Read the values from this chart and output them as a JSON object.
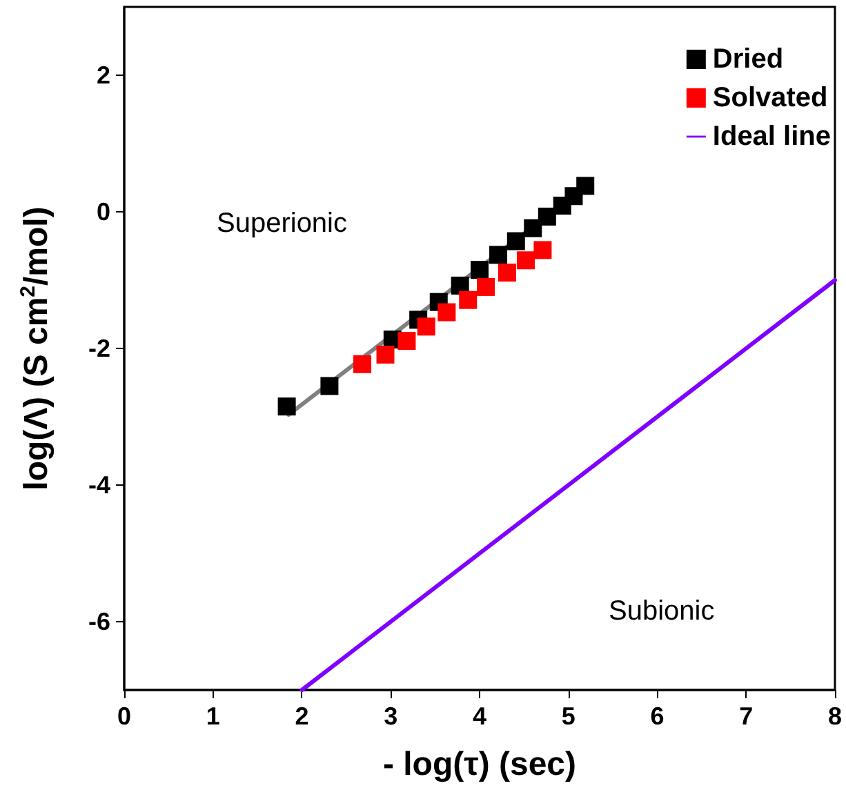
{
  "chart_data": {
    "type": "scatter",
    "xlabel": "- log(τ) (sec)",
    "ylabel": "log(Λ) (S cm$^{2}$/mol)",
    "xlim": [
      0,
      8
    ],
    "xticks": [
      0,
      1,
      2,
      3,
      4,
      5,
      6,
      7,
      8
    ],
    "ylim": [
      -7,
      3
    ],
    "yticks": [
      -6,
      -4,
      -2,
      0,
      2
    ],
    "series": [
      {
        "type": "line",
        "marker": "none",
        "color": "#808080",
        "x": [
          1.85,
          5.2
        ],
        "values": [
          -2.97,
          0.38
        ]
      },
      {
        "name": "Dried",
        "marker": "square",
        "color": "#000000",
        "x": [
          1.83,
          2.31,
          3.02,
          3.31,
          3.54,
          3.78,
          4.0,
          4.21,
          4.41,
          4.6,
          4.76,
          4.93,
          5.06,
          5.19
        ],
        "values": [
          -2.85,
          -2.55,
          -1.87,
          -1.58,
          -1.32,
          -1.08,
          -0.85,
          -0.63,
          -0.43,
          -0.24,
          -0.07,
          0.09,
          0.23,
          0.38
        ]
      },
      {
        "name": "Solvated",
        "marker": "square",
        "color": "#ff0000",
        "x": [
          2.68,
          2.94,
          3.18,
          3.4,
          3.63,
          3.87,
          4.07,
          4.31,
          4.52,
          4.71
        ],
        "values": [
          -2.23,
          -2.09,
          -1.89,
          -1.68,
          -1.47,
          -1.29,
          -1.1,
          -0.89,
          -0.71,
          -0.56
        ]
      },
      {
        "name": "Ideal line",
        "type": "line",
        "marker": "none",
        "color": "#7f00ff",
        "x": [
          2,
          8
        ],
        "values": [
          -7,
          -1
        ]
      }
    ],
    "annotations": [
      "Superionic",
      "Subionic"
    ],
    "grid": false,
    "legend": "top right"
  }
}
